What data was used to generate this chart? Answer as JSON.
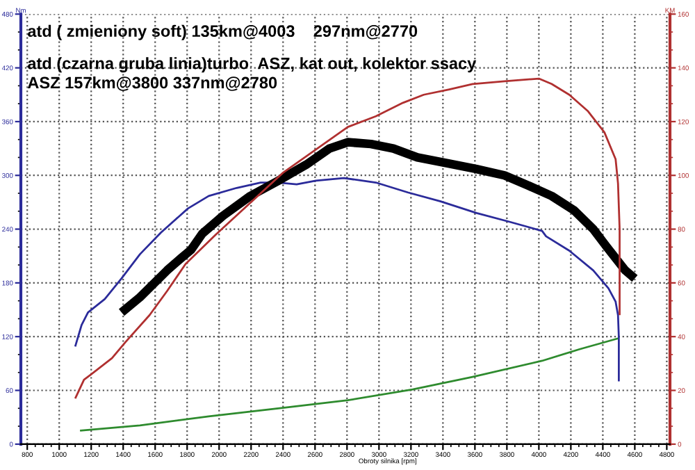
{
  "chart_data": {
    "type": "line",
    "annotations": [
      "atd ( zmieniony soft) 135km@4003    297nm@2770",
      "atd (czarna gruba linia)turbo  ASZ, kat out, kolektor ssacy",
      "ASZ 157km@3800 337nm@2780"
    ],
    "xlabel": "Obroty silnika [rpm]",
    "ylabel": "Nm",
    "y2label": "KM",
    "xlim": [
      760,
      4820
    ],
    "xticks": [
      800,
      1000,
      1200,
      1400,
      1600,
      1800,
      2000,
      2200,
      2400,
      2600,
      2800,
      3000,
      3200,
      3400,
      3600,
      3800,
      4000,
      4200,
      4400,
      4600,
      4800
    ],
    "ylim": [
      0,
      480
    ],
    "yticks": [
      0,
      60,
      120,
      180,
      240,
      300,
      360,
      420,
      480
    ],
    "y2lim": [
      0,
      160
    ],
    "y2ticks": [
      0,
      20,
      40,
      60,
      80,
      100,
      120,
      140,
      160
    ],
    "grid": true,
    "series": [
      {
        "color": "#2b2b9a",
        "x": [
          1100,
          1140,
          1180,
          1285,
          1390,
          1505,
          1635,
          1805,
          1935,
          2110,
          2260,
          2370,
          2485,
          2605,
          2780,
          2980,
          3180,
          3385,
          3610,
          3820,
          4020,
          4045,
          4190,
          4340,
          4435,
          4480,
          4495,
          4500,
          4500
        ],
        "values": [
          109,
          133,
          147,
          162,
          185,
          212,
          236,
          263,
          277,
          286,
          292,
          292,
          290,
          294,
          297,
          292,
          281,
          271,
          258,
          248,
          238,
          232,
          216,
          194,
          174,
          159,
          144,
          120,
          70
        ]
      },
      {
        "color": "#000000",
        "x": [
          1390,
          1505,
          1675,
          1765,
          1825,
          1895,
          2025,
          2195,
          2370,
          2545,
          2690,
          2805,
          2950,
          3090,
          3240,
          3440,
          3610,
          3785,
          3930,
          4080,
          4220,
          4340,
          4425,
          4540,
          4600
        ],
        "values": [
          147,
          164,
          194,
          208,
          217,
          235,
          255,
          277,
          294,
          312,
          330,
          337,
          335,
          330,
          320,
          313,
          307,
          300,
          289,
          277,
          261,
          240,
          220,
          194,
          185
        ]
      },
      {
        "color": "#b03030",
        "axis": "y2",
        "x": [
          1100,
          1155,
          1200,
          1330,
          1415,
          1565,
          1675,
          1790,
          1980,
          2400,
          2805,
          2980,
          3150,
          3280,
          3440,
          3585,
          3785,
          4000,
          4080,
          4190,
          4305,
          4410,
          4480,
          4495,
          4505,
          4505
        ],
        "values": [
          17,
          24,
          26,
          32,
          38,
          48,
          57,
          67,
          78,
          101,
          118,
          122,
          127,
          130,
          132,
          134,
          135,
          136,
          134,
          130,
          124,
          116,
          106,
          97,
          80,
          48
        ]
      },
      {
        "color": "#2e8b2e",
        "x": [
          1130,
          1505,
          1935,
          2370,
          2805,
          3210,
          3585,
          4020,
          4255,
          4495
        ],
        "values": [
          15,
          21,
          31,
          40,
          49,
          61,
          75,
          93,
          106,
          118
        ]
      }
    ]
  }
}
